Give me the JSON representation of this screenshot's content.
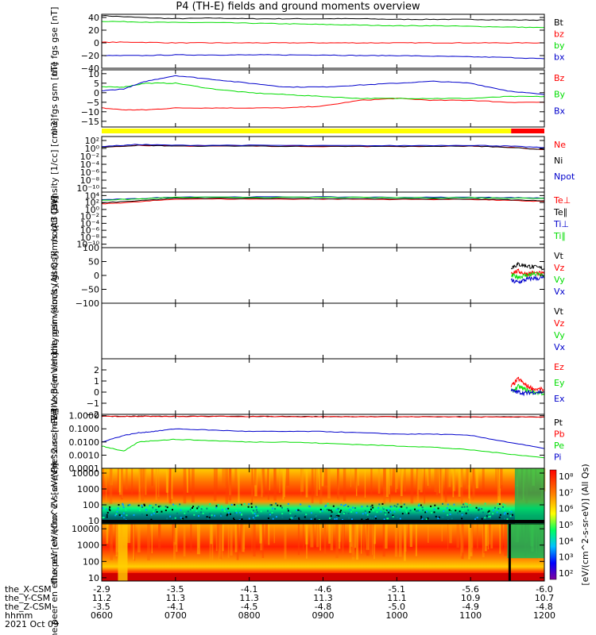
{
  "title": "P4 (TH-E) fields and ground moments overview",
  "footer": {
    "rows": [
      "the_X-CSM",
      "the_Y-CSM",
      "the_Z-CSM",
      "hhmm"
    ],
    "date": "2021 Oct 09",
    "ticks": [
      [
        "-2.9",
        "-3.5",
        "-4.1",
        "-4.6",
        "-5.1",
        "-5.6",
        "-6.0"
      ],
      [
        "11.2",
        "11.3",
        "11.3",
        "11.3",
        "11.1",
        "10.9",
        "10.7"
      ],
      [
        "-3.5",
        "-4.1",
        "-4.5",
        "-4.8",
        "-5.0",
        "-4.9",
        "-4.8"
      ],
      [
        "0600",
        "0700",
        "0800",
        "0900",
        "1000",
        "1100",
        "1200"
      ]
    ]
  },
  "colors": {
    "black": "#000000",
    "red": "#ff0000",
    "green": "#00dd00",
    "blue": "#0000cc",
    "yellow": "#ffff00"
  },
  "colorbar": {
    "ticks": [
      "10⁸",
      "10⁷",
      "10⁶",
      "10⁵",
      "10⁴",
      "10³",
      "10²"
    ],
    "label": "[eV/(cm^2-s-sr-eV)] (All Qs)"
  },
  "chart_data": [
    {
      "type": "line",
      "ylabel": "the fgs gse [nT]",
      "ylim": [
        -40,
        45
      ],
      "yticks": [
        "40",
        "20",
        "0",
        "−20",
        "−40"
      ],
      "ytick_values": [
        40,
        20,
        0,
        -20,
        -40
      ],
      "x": [
        6.0,
        6.5,
        7.0,
        7.5,
        8.0,
        8.5,
        9.0,
        9.5,
        10.0,
        10.5,
        11.0,
        11.5,
        12.0
      ],
      "series": [
        {
          "name": "Bt",
          "color": "#000000",
          "values": [
            43,
            40,
            38,
            39,
            38,
            38,
            38,
            38,
            37,
            37,
            37,
            36,
            36
          ]
        },
        {
          "name": "bz",
          "color": "#ff0000",
          "values": [
            1,
            1,
            0,
            0,
            0,
            0,
            0,
            0,
            0,
            0,
            0,
            0,
            0
          ]
        },
        {
          "name": "by",
          "color": "#00dd00",
          "values": [
            34,
            33,
            32,
            32,
            31,
            30,
            29,
            28,
            27,
            27,
            26,
            25,
            24
          ]
        },
        {
          "name": "bx",
          "color": "#0000cc",
          "values": [
            -20,
            -20,
            -19,
            -19,
            -19,
            -19,
            -19,
            -20,
            -20,
            -21,
            -22,
            -23,
            -25
          ]
        }
      ]
    },
    {
      "type": "line",
      "ylabel": "the fgs gsm [nT]",
      "ylim": [
        -18,
        12
      ],
      "yticks": [
        "10",
        "5",
        "0",
        "−5",
        "−10",
        "−15"
      ],
      "ytick_values": [
        10,
        5,
        0,
        -5,
        -10,
        -15
      ],
      "x": [
        6.0,
        6.3,
        6.6,
        7.0,
        7.5,
        8.0,
        8.5,
        9.0,
        9.5,
        10.0,
        10.5,
        11.0,
        11.5,
        12.0
      ],
      "series": [
        {
          "name": "Bz",
          "color": "#ff0000",
          "values": [
            -8,
            -9,
            -9,
            -8,
            -8,
            -8,
            -8,
            -7,
            -4,
            -3,
            -4,
            -4,
            -5,
            -5
          ]
        },
        {
          "name": "By",
          "color": "#00dd00",
          "values": [
            3,
            3,
            5,
            5,
            2,
            0,
            -1,
            -2,
            -3,
            -3,
            -3,
            -3,
            -2,
            -2
          ]
        },
        {
          "name": "Bx",
          "color": "#0000cc",
          "values": [
            1,
            2,
            6,
            9,
            7,
            5,
            3,
            3,
            4,
            5,
            6,
            5,
            1,
            -1
          ]
        }
      ]
    },
    {
      "type": "line",
      "ylabel": "Density [1/cc] [cm-3]",
      "ylim": [
        -11,
        3
      ],
      "log": true,
      "yticks": [
        "10²",
        "10⁰",
        "10⁻²",
        "10⁻⁴",
        "10⁻⁶",
        "10⁻⁸",
        "10⁻¹⁰"
      ],
      "ytick_values": [
        2,
        0,
        -2,
        -4,
        -6,
        -8,
        -10
      ],
      "x": [
        6.0,
        6.5,
        7.0,
        8.0,
        9.0,
        10.0,
        11.0,
        11.5,
        12.0
      ],
      "series": [
        {
          "name": "Ne",
          "color": "#ff0000",
          "values": [
            0.3,
            0.8,
            0.6,
            0.6,
            0.5,
            0.5,
            0.6,
            0.3,
            -0.3
          ]
        },
        {
          "name": "Ni",
          "color": "#000000",
          "values": [
            0.3,
            0.8,
            0.6,
            0.6,
            0.5,
            0.5,
            0.6,
            0.3,
            -0.3
          ]
        },
        {
          "name": "Npot",
          "color": "#0000cc",
          "values": [
            0.5,
            1.0,
            0.8,
            0.8,
            0.7,
            0.7,
            0.8,
            0.6,
            0.2
          ]
        }
      ]
    },
    {
      "type": "line",
      "ylabel": "moqt3 [eV]",
      "ylim": [
        -11,
        5
      ],
      "log": true,
      "yticks": [
        "10⁴",
        "10²",
        "10⁰",
        "10⁻²",
        "10⁻⁴",
        "10⁻⁶",
        "10⁻⁸",
        "10⁻¹⁰"
      ],
      "ytick_values": [
        4,
        2,
        0,
        -2,
        -4,
        -6,
        -8,
        -10
      ],
      "x": [
        6.0,
        6.5,
        7.0,
        8.0,
        9.0,
        10.0,
        11.0,
        11.5,
        12.0
      ],
      "series": [
        {
          "name": "Te⊥",
          "color": "#ff0000",
          "values": [
            1.6,
            2.2,
            3.0,
            3.0,
            3.0,
            2.9,
            2.9,
            2.6,
            2.3
          ]
        },
        {
          "name": "Te∥",
          "color": "#000000",
          "values": [
            1.9,
            2.5,
            3.2,
            3.2,
            3.1,
            3.0,
            3.0,
            2.8,
            2.5
          ]
        },
        {
          "name": "Ti⊥",
          "color": "#0000cc",
          "values": [
            2.8,
            3.1,
            3.6,
            3.6,
            3.6,
            3.5,
            3.5,
            3.4,
            3.3
          ]
        },
        {
          "name": "Ti∥",
          "color": "#00dd00",
          "values": [
            2.7,
            3.0,
            3.5,
            3.5,
            3.5,
            3.4,
            3.4,
            3.3,
            3.2
          ]
        }
      ]
    },
    {
      "type": "line",
      "ylabel": "the peir velocity gsm [km/s (All Qs)]",
      "ylim": [
        -100,
        100
      ],
      "yticks": [
        "100",
        "50",
        "0",
        "−50",
        "−100"
      ],
      "ytick_values": [
        100,
        50,
        0,
        -50,
        -100
      ],
      "x": [
        11.55,
        11.65,
        11.75,
        11.85,
        12.0
      ],
      "series": [
        {
          "name": "Vt",
          "color": "#000000",
          "values": [
            30,
            40,
            35,
            30,
            25
          ]
        },
        {
          "name": "Vz",
          "color": "#ff0000",
          "values": [
            10,
            15,
            5,
            10,
            5
          ]
        },
        {
          "name": "Vy",
          "color": "#00dd00",
          "values": [
            0,
            -5,
            0,
            5,
            0
          ]
        },
        {
          "name": "Vx",
          "color": "#0000cc",
          "values": [
            -20,
            -25,
            -15,
            -10,
            -10
          ]
        }
      ]
    },
    {
      "type": "line",
      "ylabel": "the peer velocity gsm [km/s (All Qs)]",
      "ylim": [
        -100,
        100
      ],
      "yticks": [],
      "ytick_values": [],
      "x": [],
      "series": [
        {
          "name": "Vt",
          "color": "#000000",
          "values": []
        },
        {
          "name": "Vz",
          "color": "#ff0000",
          "values": []
        },
        {
          "name": "Vy",
          "color": "#00dd00",
          "values": []
        },
        {
          "name": "Vx",
          "color": "#0000cc",
          "values": []
        }
      ]
    },
    {
      "type": "line",
      "ylabel": "E=-VxB [mV/m]",
      "ylim": [
        -2,
        3
      ],
      "yticks": [
        "2",
        "1",
        "0",
        "−1",
        "−2"
      ],
      "ytick_values": [
        2,
        1,
        0,
        -1,
        -2
      ],
      "x": [
        11.55,
        11.65,
        11.75,
        11.85,
        12.0
      ],
      "series": [
        {
          "name": "Ez",
          "color": "#ff0000",
          "values": [
            0.5,
            1.2,
            0.6,
            0.3,
            0.2
          ]
        },
        {
          "name": "Ey",
          "color": "#00dd00",
          "values": [
            0.0,
            0.5,
            0.2,
            0.0,
            -0.1
          ]
        },
        {
          "name": "Ex",
          "color": "#0000cc",
          "values": [
            0.1,
            0.0,
            -0.1,
            0.0,
            0.0
          ]
        }
      ]
    },
    {
      "type": "line",
      "ylabel": "Pressure [nPa]",
      "ylim": [
        -4,
        0.1
      ],
      "log": true,
      "yticks": [
        "1.0000",
        "0.1000",
        "0.0100",
        "0.0010",
        "0.0001"
      ],
      "ytick_values": [
        0,
        -1,
        -2,
        -3,
        -4
      ],
      "x": [
        6.0,
        6.3,
        6.5,
        6.7,
        7.0,
        7.5,
        8.0,
        8.5,
        9.0,
        9.5,
        10.0,
        10.5,
        11.0,
        11.5,
        12.0
      ],
      "series": [
        {
          "name": "Pt",
          "color": "#000000",
          "values": [
            -0.05,
            -0.05,
            -0.04,
            -0.04,
            -0.05,
            -0.05,
            -0.06,
            -0.06,
            -0.07,
            -0.07,
            -0.08,
            -0.08,
            -0.09,
            -0.1,
            -0.1
          ]
        },
        {
          "name": "Pb",
          "color": "#ff0000",
          "values": [
            -0.05,
            -0.06,
            -0.05,
            -0.05,
            -0.06,
            -0.06,
            -0.06,
            -0.07,
            -0.07,
            -0.08,
            -0.08,
            -0.09,
            -0.1,
            -0.1,
            -0.1
          ]
        },
        {
          "name": "Pe",
          "color": "#00dd00",
          "values": [
            -2.3,
            -2.7,
            -2.0,
            -1.9,
            -1.8,
            -1.9,
            -2.0,
            -2.0,
            -2.1,
            -2.2,
            -2.3,
            -2.4,
            -2.6,
            -2.9,
            -3.2
          ]
        },
        {
          "name": "Pi",
          "color": "#0000cc",
          "values": [
            -2.0,
            -1.5,
            -1.3,
            -1.2,
            -1.0,
            -1.1,
            -1.2,
            -1.2,
            -1.2,
            -1.3,
            -1.4,
            -1.4,
            -1.5,
            -2.0,
            -2.5
          ]
        }
      ]
    },
    {
      "type": "heatmap",
      "ylabel": "the peir en eflux eV [eV/(cm^2-s-sr-eV)]",
      "yticks": [
        "10000",
        "1000",
        "100",
        "10"
      ],
      "ytick_values": [
        4,
        3,
        2,
        1
      ],
      "ylim": [
        0.8,
        4.3
      ]
    },
    {
      "type": "heatmap",
      "ylabel": "the peer en eflux eV [eV/(cm^2-s-sr-eV)]",
      "yticks": [
        "10000",
        "1000",
        "100",
        "10"
      ],
      "ytick_values": [
        4,
        3,
        2,
        1
      ],
      "ylim": [
        0.8,
        4.3
      ]
    }
  ]
}
